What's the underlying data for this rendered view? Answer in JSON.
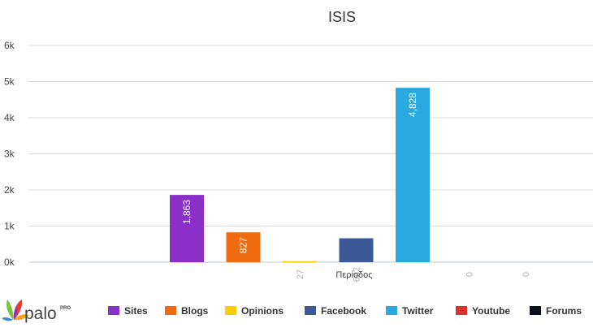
{
  "brand": {
    "name": "palo",
    "tier": "PRO"
  },
  "chart_data": {
    "type": "bar",
    "title": "ISIS",
    "xlabel": "Περίοδος",
    "ylabel": "",
    "ylim": [
      0,
      6000
    ],
    "yticks": [
      "0k",
      "1k",
      "2k",
      "3k",
      "4k",
      "5k",
      "6k"
    ],
    "grid": true,
    "legend_position": "bottom",
    "series": [
      {
        "name": "Sites",
        "value": 1863,
        "label": "1,863",
        "color": "#8b2fc9"
      },
      {
        "name": "Blogs",
        "value": 827,
        "label": "827",
        "color": "#f06a0f"
      },
      {
        "name": "Opinions",
        "value": 27,
        "label": "27",
        "color": "#ffcc00"
      },
      {
        "name": "Facebook",
        "value": 662,
        "label": "662",
        "color": "#3d5a98"
      },
      {
        "name": "Twitter",
        "value": 4828,
        "label": "4,828",
        "color": "#2aa9e0"
      },
      {
        "name": "Youtube",
        "value": 0,
        "label": "0",
        "color": "#d9342b"
      },
      {
        "name": "Forums",
        "value": 0,
        "label": "0",
        "color": "#0a0f1e"
      }
    ]
  }
}
